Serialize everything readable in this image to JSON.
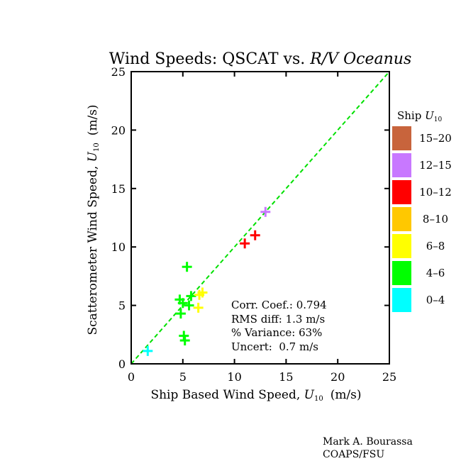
{
  "chart_data": {
    "type": "scatter",
    "title": "Wind Speeds: QSCAT vs. R/V Oceanus",
    "title_parts": {
      "main": "Wind Speeds: QSCAT vs. ",
      "italic": "R/V Oceanus"
    },
    "xlabel": {
      "text": "Ship Based Wind Speed, ",
      "var": "U",
      "sub": "10",
      "units": "(m/s)"
    },
    "ylabel": {
      "text": "Scatterometer Wind Speed, ",
      "var": "U",
      "sub": "10",
      "units": "(m/s)"
    },
    "xlim": [
      0,
      25
    ],
    "ylim": [
      0,
      25
    ],
    "xticks": [
      "0",
      "5",
      "10",
      "15",
      "20",
      "25"
    ],
    "yticks": [
      "0",
      "5",
      "10",
      "15",
      "20",
      "25"
    ],
    "grid": false,
    "one_to_one_line": {
      "x": [
        0,
        25
      ],
      "y": [
        0,
        25
      ],
      "color": "#00e000",
      "style": "dashed"
    },
    "legend": {
      "title": {
        "text": "Ship ",
        "var": "U",
        "sub": "10"
      },
      "placement": "right",
      "entries": [
        {
          "label": "15–20",
          "color": "#c8643c"
        },
        {
          "label": "12–15",
          "color": "#c878ff"
        },
        {
          "label": "10–12",
          "color": "#ff0000"
        },
        {
          "label": "8–10",
          "color": "#ffc800"
        },
        {
          "label": "6–8",
          "color": "#ffff00"
        },
        {
          "label": "4–6",
          "color": "#00ff00"
        },
        {
          "label": "0–4",
          "color": "#00ffff"
        }
      ]
    },
    "points": [
      {
        "x": 1.6,
        "y": 1.1,
        "color": "#00ffff"
      },
      {
        "x": 5.4,
        "y": 8.3,
        "color": "#00ff00"
      },
      {
        "x": 4.7,
        "y": 5.5,
        "color": "#00ff00"
      },
      {
        "x": 5.0,
        "y": 5.2,
        "color": "#00ff00"
      },
      {
        "x": 5.6,
        "y": 5.0,
        "color": "#00ff00"
      },
      {
        "x": 5.8,
        "y": 5.8,
        "color": "#00ff00"
      },
      {
        "x": 4.8,
        "y": 4.3,
        "color": "#00ff00"
      },
      {
        "x": 5.1,
        "y": 2.4,
        "color": "#00ff00"
      },
      {
        "x": 5.2,
        "y": 2.0,
        "color": "#00ff00"
      },
      {
        "x": 6.6,
        "y": 5.9,
        "color": "#ffff00"
      },
      {
        "x": 6.9,
        "y": 6.1,
        "color": "#ffff00"
      },
      {
        "x": 6.5,
        "y": 4.8,
        "color": "#ffff00"
      },
      {
        "x": 11.0,
        "y": 10.3,
        "color": "#ff0000"
      },
      {
        "x": 12.0,
        "y": 11.0,
        "color": "#ff0000"
      },
      {
        "x": 13.0,
        "y": 13.0,
        "color": "#c878ff"
      }
    ],
    "annotations": [
      "Corr. Coef.: 0.794",
      "RMS diff: 1.3 m/s",
      "% Variance: 63%",
      "Uncert:  0.7 m/s"
    ]
  },
  "credit": {
    "line1": "Mark A. Bourassa",
    "line2": "COAPS/FSU"
  }
}
